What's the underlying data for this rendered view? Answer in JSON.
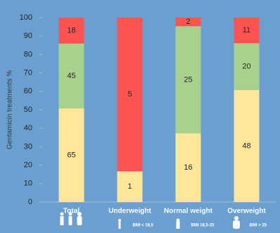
{
  "chart_data": {
    "type": "stacked_percent_bar",
    "y_label": "Gentamicin treatments %",
    "categories": [
      "Total",
      "Underweight",
      "Normal weight",
      "Overweight"
    ],
    "subcategories": [
      null,
      "BMI < 18,5",
      "BMI 18,5-25",
      "BMI > 25"
    ],
    "series": [
      {
        "color": "#ffe699",
        "values": [
          65,
          1,
          16,
          48
        ]
      },
      {
        "color": "#a9d18e",
        "values": [
          45,
          null,
          25,
          20
        ]
      },
      {
        "color": "#ff5353",
        "values": [
          18,
          5,
          2,
          11
        ]
      }
    ],
    "ylim": [
      0,
      100
    ],
    "yticks": [
      0,
      10,
      20,
      30,
      40,
      50,
      60,
      70,
      80,
      90,
      100
    ]
  }
}
